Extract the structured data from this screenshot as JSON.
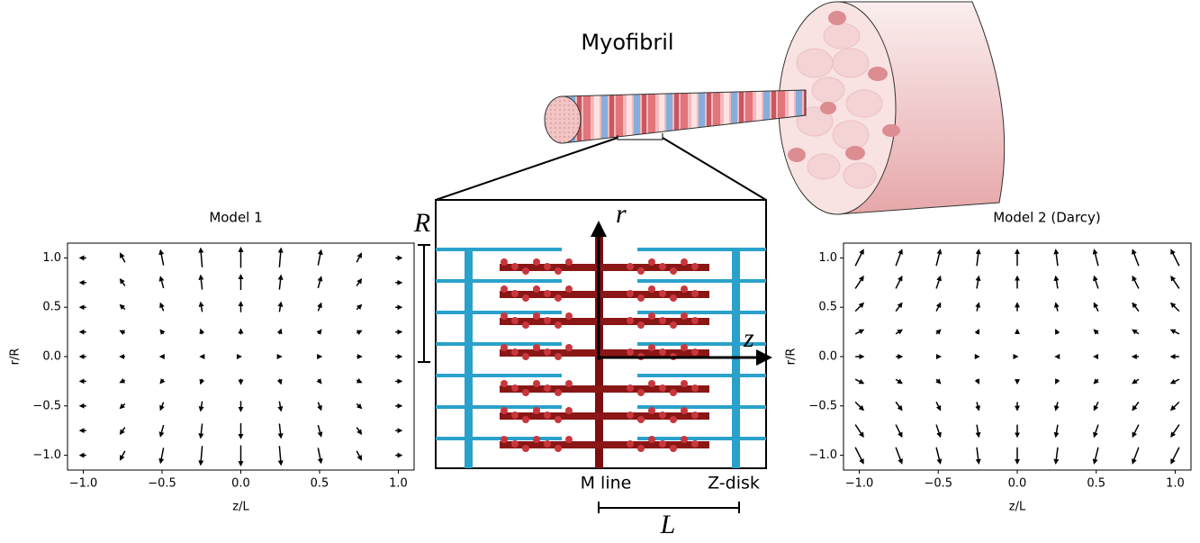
{
  "chart_data": [
    {
      "type": "quiver",
      "title": "Model 1",
      "x_label": "z/L",
      "y_label": "r/R",
      "x": [
        -1,
        -0.75,
        -0.5,
        -0.25,
        0,
        0.25,
        0.5,
        0.75,
        1
      ],
      "y": [
        -1,
        -0.75,
        -0.5,
        -0.25,
        0,
        0.25,
        0.5,
        0.75,
        1
      ],
      "u": [
        [
          -0.3,
          -0.23,
          -0.15,
          -0.08,
          0,
          0.08,
          0.15,
          0.23,
          0.3
        ],
        [
          -0.3,
          -0.23,
          -0.15,
          -0.08,
          0,
          0.08,
          0.15,
          0.23,
          0.3
        ],
        [
          -0.3,
          -0.23,
          -0.15,
          -0.08,
          0,
          0.08,
          0.15,
          0.23,
          0.3
        ],
        [
          -0.3,
          -0.23,
          -0.15,
          -0.08,
          0,
          0.08,
          0.15,
          0.23,
          0.3
        ],
        [
          -0.3,
          -0.23,
          -0.15,
          -0.08,
          0,
          0.08,
          0.15,
          0.23,
          0.3
        ],
        [
          -0.3,
          -0.23,
          -0.15,
          -0.08,
          0,
          0.08,
          0.15,
          0.23,
          0.3
        ],
        [
          -0.3,
          -0.23,
          -0.15,
          -0.08,
          0,
          0.08,
          0.15,
          0.23,
          0.3
        ],
        [
          -0.3,
          -0.23,
          -0.15,
          -0.08,
          0,
          0.08,
          0.15,
          0.23,
          0.3
        ],
        [
          -0.3,
          -0.23,
          -0.15,
          -0.08,
          0,
          0.08,
          0.15,
          0.23,
          0.3
        ]
      ],
      "v": [
        [
          0,
          -0.44,
          -0.75,
          -0.94,
          -1,
          -0.94,
          -0.75,
          -0.44,
          0
        ],
        [
          0,
          -0.33,
          -0.56,
          -0.7,
          -0.75,
          -0.7,
          -0.56,
          -0.33,
          0
        ],
        [
          0,
          -0.22,
          -0.38,
          -0.47,
          -0.5,
          -0.47,
          -0.38,
          -0.22,
          0
        ],
        [
          0,
          -0.11,
          -0.19,
          -0.23,
          -0.25,
          -0.23,
          -0.19,
          -0.11,
          0
        ],
        [
          0,
          0,
          0,
          0,
          0,
          0,
          0,
          0,
          0
        ],
        [
          0,
          0.11,
          0.19,
          0.23,
          0.25,
          0.23,
          0.19,
          0.11,
          0
        ],
        [
          0,
          0.22,
          0.38,
          0.47,
          0.5,
          0.47,
          0.38,
          0.22,
          0
        ],
        [
          0,
          0.33,
          0.56,
          0.7,
          0.75,
          0.7,
          0.56,
          0.33,
          0
        ],
        [
          0,
          0.44,
          0.75,
          0.94,
          1,
          0.94,
          0.75,
          0.44,
          0
        ]
      ],
      "color": "#000000",
      "xlim": [
        -1.1,
        1.1
      ],
      "ylim": [
        -1.15,
        1.15
      ],
      "xticks": [
        {
          "value": -1,
          "label": "−1.0"
        },
        {
          "value": -0.5,
          "label": "−0.5"
        },
        {
          "value": 0,
          "label": "0.0"
        },
        {
          "value": 0.5,
          "label": "0.5"
        },
        {
          "value": 1,
          "label": "1.0"
        }
      ],
      "yticks": [
        {
          "value": -1,
          "label": "−1.0"
        },
        {
          "value": -0.5,
          "label": "−0.5"
        },
        {
          "value": 0,
          "label": "0.0"
        },
        {
          "value": 0.5,
          "label": "0.5"
        },
        {
          "value": 1,
          "label": "1.0"
        }
      ]
    },
    {
      "type": "quiver",
      "title": "Model 2 (Darcy)",
      "x_label": "z/L",
      "y_label": "r/R",
      "x": [
        -1,
        -0.75,
        -0.5,
        -0.25,
        0,
        0.25,
        0.5,
        0.75,
        1
      ],
      "y": [
        -1,
        -0.75,
        -0.5,
        -0.25,
        0,
        0.25,
        0.5,
        0.75,
        1
      ],
      "u": [
        [
          0.4,
          0.3,
          0.2,
          0.1,
          0,
          -0.1,
          -0.2,
          -0.3,
          -0.4
        ],
        [
          0.4,
          0.3,
          0.2,
          0.1,
          0,
          -0.1,
          -0.2,
          -0.3,
          -0.4
        ],
        [
          0.4,
          0.3,
          0.2,
          0.1,
          0,
          -0.1,
          -0.2,
          -0.3,
          -0.4
        ],
        [
          0.4,
          0.3,
          0.2,
          0.1,
          0,
          -0.1,
          -0.2,
          -0.3,
          -0.4
        ],
        [
          0.4,
          0.3,
          0.2,
          0.1,
          0,
          -0.1,
          -0.2,
          -0.3,
          -0.4
        ],
        [
          0.4,
          0.3,
          0.2,
          0.1,
          0,
          -0.1,
          -0.2,
          -0.3,
          -0.4
        ],
        [
          0.4,
          0.3,
          0.2,
          0.1,
          0,
          -0.1,
          -0.2,
          -0.3,
          -0.4
        ],
        [
          0.4,
          0.3,
          0.2,
          0.1,
          0,
          -0.1,
          -0.2,
          -0.3,
          -0.4
        ],
        [
          0.4,
          0.3,
          0.2,
          0.1,
          0,
          -0.1,
          -0.2,
          -0.3,
          -0.4
        ]
      ],
      "v": [
        [
          -0.8,
          -0.8,
          -0.8,
          -0.8,
          -0.8,
          -0.8,
          -0.8,
          -0.8,
          -0.8
        ],
        [
          -0.6,
          -0.6,
          -0.6,
          -0.6,
          -0.6,
          -0.6,
          -0.6,
          -0.6,
          -0.6
        ],
        [
          -0.4,
          -0.4,
          -0.4,
          -0.4,
          -0.4,
          -0.4,
          -0.4,
          -0.4,
          -0.4
        ],
        [
          -0.2,
          -0.2,
          -0.2,
          -0.2,
          -0.2,
          -0.2,
          -0.2,
          -0.2,
          -0.2
        ],
        [
          0,
          0,
          0,
          0,
          0,
          0,
          0,
          0,
          0
        ],
        [
          0.2,
          0.2,
          0.2,
          0.2,
          0.2,
          0.2,
          0.2,
          0.2,
          0.2
        ],
        [
          0.4,
          0.4,
          0.4,
          0.4,
          0.4,
          0.4,
          0.4,
          0.4,
          0.4
        ],
        [
          0.6,
          0.6,
          0.6,
          0.6,
          0.6,
          0.6,
          0.6,
          0.6,
          0.6
        ],
        [
          0.8,
          0.8,
          0.8,
          0.8,
          0.8,
          0.8,
          0.8,
          0.8,
          0.8
        ]
      ],
      "color": "#000000",
      "xlim": [
        -1.1,
        1.1
      ],
      "ylim": [
        -1.15,
        1.15
      ],
      "xticks": [
        {
          "value": -1,
          "label": "−1.0"
        },
        {
          "value": -0.5,
          "label": "−0.5"
        },
        {
          "value": 0,
          "label": "0.0"
        },
        {
          "value": 0.5,
          "label": "0.5"
        },
        {
          "value": 1,
          "label": "1.0"
        }
      ],
      "yticks": [
        {
          "value": -1,
          "label": "−1.0"
        },
        {
          "value": -0.5,
          "label": "−0.5"
        },
        {
          "value": 0,
          "label": "0.0"
        },
        {
          "value": 0.5,
          "label": "0.5"
        },
        {
          "value": 1,
          "label": "1.0"
        }
      ]
    }
  ],
  "diagram": {
    "myofibril": "Myofibril",
    "radius": "R",
    "r_axis": "r",
    "z_axis": "z",
    "m_line": "M line",
    "z_disk": "Z-disk",
    "length": "L"
  }
}
